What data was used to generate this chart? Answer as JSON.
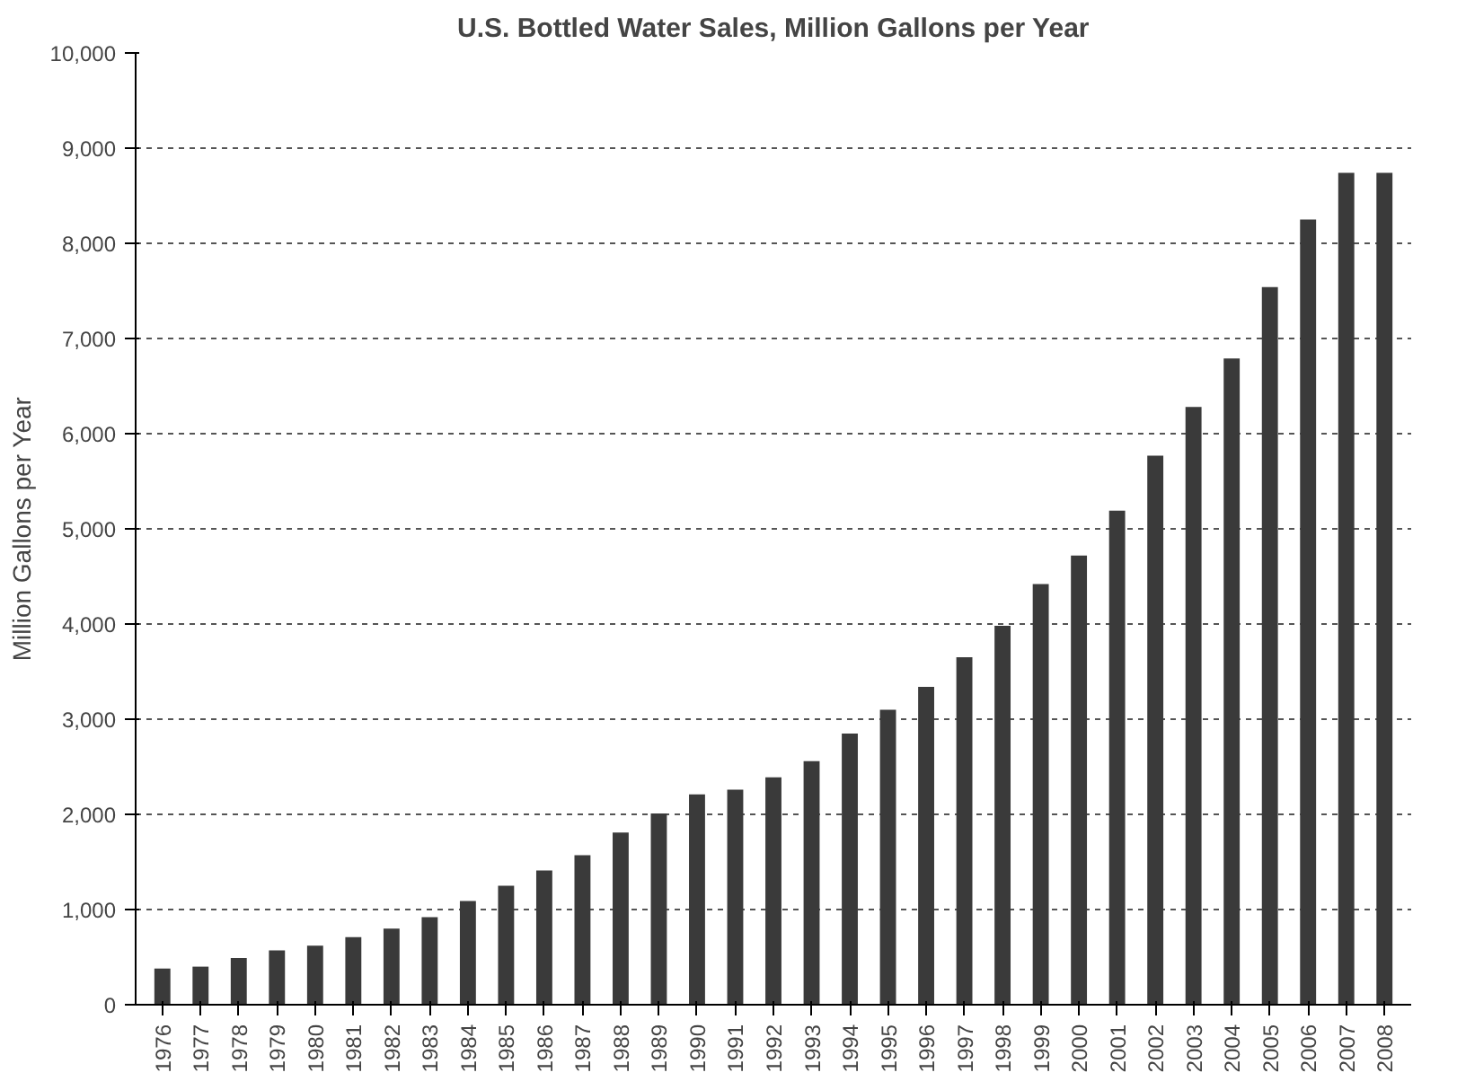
{
  "chart_data": {
    "type": "bar",
    "title": "U.S. Bottled Water Sales, Million Gallons per Year",
    "ylabel": "Million Gallons per Year",
    "categories": [
      "1976",
      "1977",
      "1978",
      "1979",
      "1980",
      "1981",
      "1982",
      "1983",
      "1984",
      "1985",
      "1986",
      "1987",
      "1988",
      "1989",
      "1990",
      "1991",
      "1992",
      "1993",
      "1994",
      "1995",
      "1996",
      "1997",
      "1998",
      "1999",
      "2000",
      "2001",
      "2002",
      "2003",
      "2004",
      "2005",
      "2006",
      "2007",
      "2008"
    ],
    "values": [
      380,
      400,
      490,
      570,
      620,
      710,
      800,
      920,
      1090,
      1250,
      1410,
      1570,
      1810,
      2010,
      2210,
      2260,
      2390,
      2560,
      2850,
      3100,
      3340,
      3650,
      3980,
      4420,
      4720,
      5190,
      5770,
      6280,
      6790,
      7540,
      8250,
      8740,
      8740
    ],
    "color": "#3a3a3a",
    "ylim": [
      0,
      10000
    ],
    "yticks": [
      0,
      {
        "value": 1000,
        "label": "1,000"
      },
      {
        "value": 2000,
        "label": "2,000"
      },
      {
        "value": 3000,
        "label": "3,000"
      },
      {
        "value": 4000,
        "label": "4,000"
      },
      {
        "value": 5000,
        "label": "5,000"
      },
      {
        "value": 6000,
        "label": "6,000"
      },
      {
        "value": 7000,
        "label": "7,000"
      },
      {
        "value": 8000,
        "label": "8,000"
      },
      {
        "value": 9000,
        "label": "9,000"
      },
      {
        "value": 10000,
        "label": "10,000"
      }
    ],
    "grid": "y"
  }
}
